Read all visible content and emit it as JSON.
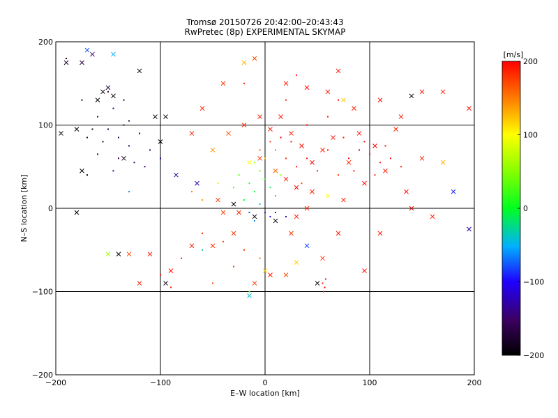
{
  "chart_data": {
    "type": "scatter",
    "title_line1": "Tromsø 20150726 20:42:00–20:43:43",
    "title_line2": "RwPretec (8p) EXPERIMENTAL SKYMAP",
    "xlabel": "E–W location [km]",
    "ylabel": "N–S location [km]",
    "xlim": [
      -200,
      200
    ],
    "ylim": [
      -200,
      200
    ],
    "xticks": [
      -200,
      -100,
      0,
      100,
      200
    ],
    "yticks": [
      -200,
      -100,
      0,
      100,
      200
    ],
    "grid_lines_x": [
      -100,
      0,
      100
    ],
    "grid_lines_y": [
      -100,
      0,
      100
    ],
    "grid": true,
    "colorbar": {
      "label": "[m/s]",
      "range": [
        -200,
        200
      ],
      "ticks": [
        200,
        100,
        0,
        -100,
        -200
      ]
    },
    "marker_types": [
      "dot",
      "x"
    ],
    "point_count_note": "",
    "series": [
      {
        "marker": "dot",
        "points": [
          [
            -160,
            110,
            -175
          ],
          [
            -150,
            95,
            -170
          ],
          [
            -140,
            85,
            -165
          ],
          [
            -135,
            100,
            -160
          ],
          [
            -145,
            120,
            -150
          ],
          [
            -155,
            80,
            -180
          ],
          [
            -130,
            75,
            -155
          ],
          [
            -120,
            90,
            -165
          ],
          [
            -165,
            95,
            -185
          ],
          [
            -140,
            60,
            -150
          ],
          [
            -125,
            55,
            -145
          ],
          [
            -175,
            130,
            -190
          ],
          [
            -150,
            140,
            -175
          ],
          [
            -110,
            70,
            -140
          ],
          [
            -130,
            105,
            -170
          ],
          [
            -160,
            65,
            -160
          ],
          [
            -145,
            45,
            -140
          ],
          [
            -170,
            85,
            -180
          ],
          [
            -115,
            50,
            -150
          ],
          [
            -135,
            130,
            -165
          ],
          [
            -25,
            40,
            30
          ],
          [
            -15,
            30,
            10
          ],
          [
            -10,
            20,
            0
          ],
          [
            -5,
            45,
            40
          ],
          [
            0,
            35,
            20
          ],
          [
            5,
            25,
            -10
          ],
          [
            10,
            15,
            -30
          ],
          [
            -20,
            10,
            0
          ],
          [
            -30,
            25,
            20
          ],
          [
            15,
            40,
            60
          ],
          [
            -10,
            55,
            50
          ],
          [
            -5,
            5,
            -40
          ],
          [
            0,
            -5,
            -90
          ],
          [
            5,
            -10,
            -110
          ],
          [
            -15,
            -5,
            -80
          ],
          [
            10,
            -5,
            -100
          ],
          [
            20,
            -10,
            -130
          ],
          [
            -10,
            -15,
            -60
          ],
          [
            0,
            60,
            120
          ],
          [
            10,
            70,
            150
          ],
          [
            20,
            60,
            180
          ],
          [
            30,
            50,
            190
          ],
          [
            15,
            85,
            200
          ],
          [
            25,
            80,
            195
          ],
          [
            40,
            60,
            190
          ],
          [
            35,
            30,
            170
          ],
          [
            50,
            45,
            185
          ],
          [
            60,
            70,
            195
          ],
          [
            5,
            80,
            180
          ],
          [
            -5,
            70,
            160
          ],
          [
            80,
            60,
            195
          ],
          [
            90,
            70,
            200
          ],
          [
            100,
            65,
            195
          ],
          [
            110,
            55,
            190
          ],
          [
            95,
            80,
            200
          ],
          [
            85,
            45,
            185
          ],
          [
            120,
            60,
            195
          ],
          [
            105,
            40,
            185
          ],
          [
            75,
            85,
            195
          ],
          [
            115,
            75,
            200
          ],
          [
            130,
            50,
            190
          ],
          [
            70,
            40,
            180
          ],
          [
            55,
            -90,
            195
          ],
          [
            57,
            -95,
            200
          ],
          [
            56,
            -100,
            190
          ],
          [
            58,
            -85,
            195
          ],
          [
            -40,
            -40,
            175
          ],
          [
            -20,
            -50,
            180
          ],
          [
            -60,
            -30,
            185
          ],
          [
            -80,
            -60,
            190
          ],
          [
            -100,
            -80,
            195
          ],
          [
            -90,
            -95,
            190
          ],
          [
            -30,
            -70,
            180
          ],
          [
            -50,
            -90,
            175
          ],
          [
            -70,
            20,
            150
          ],
          [
            -60,
            10,
            140
          ],
          [
            -45,
            30,
            110
          ],
          [
            40,
            100,
            200
          ],
          [
            60,
            110,
            195
          ],
          [
            20,
            130,
            190
          ],
          [
            -20,
            150,
            185
          ],
          [
            30,
            160,
            195
          ],
          [
            70,
            130,
            200
          ],
          [
            -5,
            -60,
            160
          ],
          [
            -15,
            -100,
            20
          ],
          [
            -60,
            -50,
            -20
          ],
          [
            -100,
            60,
            -120
          ],
          [
            -170,
            40,
            -190
          ],
          [
            -130,
            20,
            -60
          ],
          [
            -190,
            180,
            -195
          ]
        ]
      },
      {
        "marker": "x",
        "points": [
          [
            -190,
            175,
            -180
          ],
          [
            -175,
            175,
            -170
          ],
          [
            -160,
            130,
            -200
          ],
          [
            -150,
            145,
            -175
          ],
          [
            -135,
            60,
            -190
          ],
          [
            -120,
            165,
            -200
          ],
          [
            -145,
            185,
            -50
          ],
          [
            -175,
            45,
            -200
          ],
          [
            -180,
            -5,
            -200
          ],
          [
            -140,
            -55,
            -200
          ],
          [
            -130,
            -55,
            170
          ],
          [
            -100,
            80,
            -195
          ],
          [
            -70,
            90,
            190
          ],
          [
            -95,
            110,
            -195
          ],
          [
            -60,
            120,
            185
          ],
          [
            -40,
            150,
            180
          ],
          [
            -20,
            175,
            130
          ],
          [
            -10,
            180,
            170
          ],
          [
            20,
            150,
            190
          ],
          [
            40,
            145,
            200
          ],
          [
            60,
            140,
            195
          ],
          [
            70,
            165,
            195
          ],
          [
            75,
            130,
            120
          ],
          [
            85,
            120,
            190
          ],
          [
            110,
            130,
            195
          ],
          [
            130,
            110,
            190
          ],
          [
            140,
            135,
            -200
          ],
          [
            150,
            140,
            195
          ],
          [
            170,
            140,
            190
          ],
          [
            195,
            120,
            195
          ],
          [
            180,
            20,
            -90
          ],
          [
            195,
            -25,
            -130
          ],
          [
            160,
            -10,
            190
          ],
          [
            140,
            0,
            195
          ],
          [
            110,
            -30,
            190
          ],
          [
            95,
            -75,
            195
          ],
          [
            70,
            -30,
            190
          ],
          [
            55,
            -60,
            180
          ],
          [
            50,
            -90,
            -200
          ],
          [
            40,
            -45,
            -80
          ],
          [
            30,
            -65,
            120
          ],
          [
            20,
            -80,
            170
          ],
          [
            5,
            -80,
            190
          ],
          [
            0,
            -75,
            115
          ],
          [
            -10,
            -90,
            175
          ],
          [
            -15,
            -105,
            -40
          ],
          [
            -30,
            -30,
            180
          ],
          [
            -50,
            -45,
            185
          ],
          [
            -70,
            -45,
            190
          ],
          [
            -90,
            -75,
            195
          ],
          [
            -110,
            -55,
            190
          ],
          [
            -120,
            -90,
            185
          ],
          [
            -95,
            -90,
            -200
          ],
          [
            -150,
            -55,
            60
          ],
          [
            -170,
            190,
            -80
          ],
          [
            -165,
            185,
            -150
          ],
          [
            -180,
            95,
            -200
          ],
          [
            -195,
            90,
            -200
          ],
          [
            -155,
            140,
            -200
          ],
          [
            -145,
            135,
            -200
          ],
          [
            -105,
            110,
            -200
          ],
          [
            -85,
            40,
            -130
          ],
          [
            -65,
            30,
            -120
          ],
          [
            -45,
            10,
            180
          ],
          [
            -25,
            -5,
            185
          ],
          [
            -15,
            55,
            100
          ],
          [
            -5,
            60,
            180
          ],
          [
            10,
            45,
            160
          ],
          [
            20,
            35,
            190
          ],
          [
            30,
            25,
            195
          ],
          [
            45,
            20,
            185
          ],
          [
            60,
            15,
            100
          ],
          [
            75,
            10,
            190
          ],
          [
            95,
            30,
            195
          ],
          [
            115,
            45,
            190
          ],
          [
            135,
            20,
            195
          ],
          [
            150,
            60,
            190
          ],
          [
            170,
            55,
            130
          ],
          [
            125,
            95,
            190
          ],
          [
            105,
            75,
            200
          ],
          [
            90,
            90,
            195
          ],
          [
            80,
            55,
            185
          ],
          [
            65,
            85,
            195
          ],
          [
            55,
            70,
            190
          ],
          [
            45,
            55,
            200
          ],
          [
            35,
            75,
            195
          ],
          [
            25,
            90,
            190
          ],
          [
            15,
            110,
            195
          ],
          [
            5,
            95,
            190
          ],
          [
            -5,
            110,
            190
          ],
          [
            -20,
            100,
            185
          ],
          [
            -35,
            90,
            170
          ],
          [
            -50,
            70,
            140
          ],
          [
            -30,
            5,
            -200
          ],
          [
            -10,
            -10,
            -190
          ],
          [
            10,
            -15,
            -200
          ],
          [
            30,
            -10,
            190
          ],
          [
            40,
            0,
            185
          ],
          [
            25,
            -30,
            180
          ],
          [
            -40,
            -5,
            175
          ]
        ]
      }
    ]
  }
}
